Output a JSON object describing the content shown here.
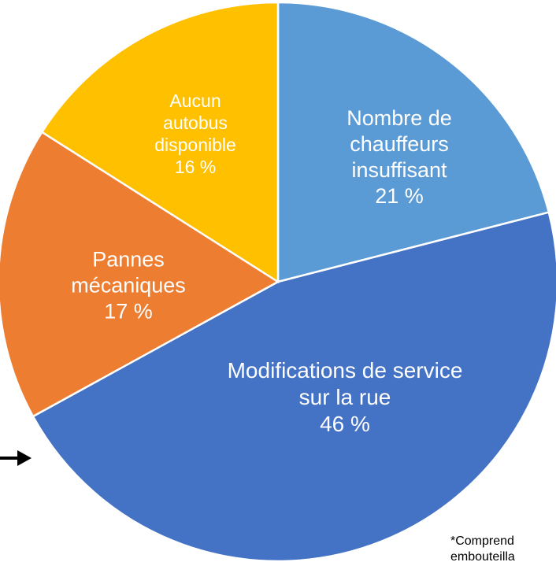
{
  "chart_data": {
    "type": "pie",
    "categories": [
      "Nombre de chauffeurs insuffisant",
      "Modifications de service sur la rue",
      "Pannes mécaniques",
      "Aucun autobus disponible"
    ],
    "values": [
      21,
      46,
      17,
      16
    ],
    "value_labels": [
      "21 %",
      "46 %",
      "17 %",
      "16 %"
    ],
    "colors": [
      "#5b9bd5",
      "#4472c4",
      "#ed7d31",
      "#ffc000"
    ],
    "note_lines": [
      "*Comprend",
      "embouteilla"
    ]
  }
}
